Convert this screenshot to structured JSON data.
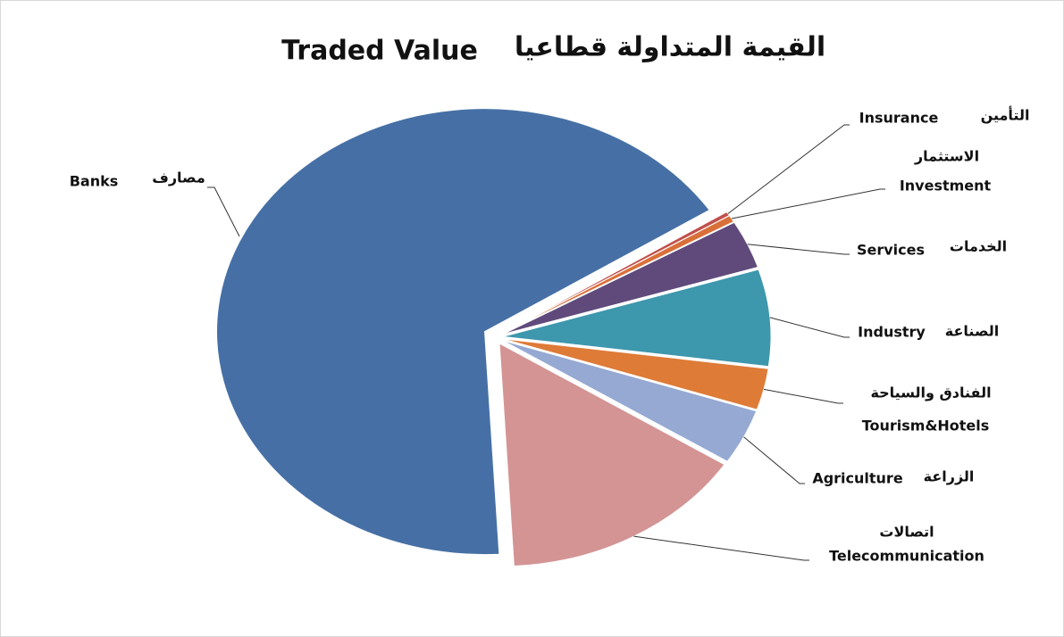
{
  "chart_data": {
    "type": "pie",
    "title": {
      "en": "Traded Value",
      "ar": "القيمة المتداولة قطاعيا"
    },
    "categories": [
      "Insurance",
      "Investment",
      "Services",
      "Industry",
      "Tourism&Hotels",
      "Agriculture",
      "Telecommunication",
      "Banks"
    ],
    "categories_ar": [
      "التأمين",
      "الاستثمار",
      "الخدمات",
      "الصناعة",
      "الفنادق والسياحة",
      "الزراعة",
      "اتصالات",
      "مصارف"
    ],
    "values": [
      0.3,
      0.5,
      3.5,
      7,
      3,
      4,
      15,
      66.7
    ],
    "colors": [
      "#c0504d",
      "#d9703a",
      "#604a7b",
      "#3d97ad",
      "#de7b37",
      "#95a9d2",
      "#d49494",
      "#4670a5"
    ]
  }
}
